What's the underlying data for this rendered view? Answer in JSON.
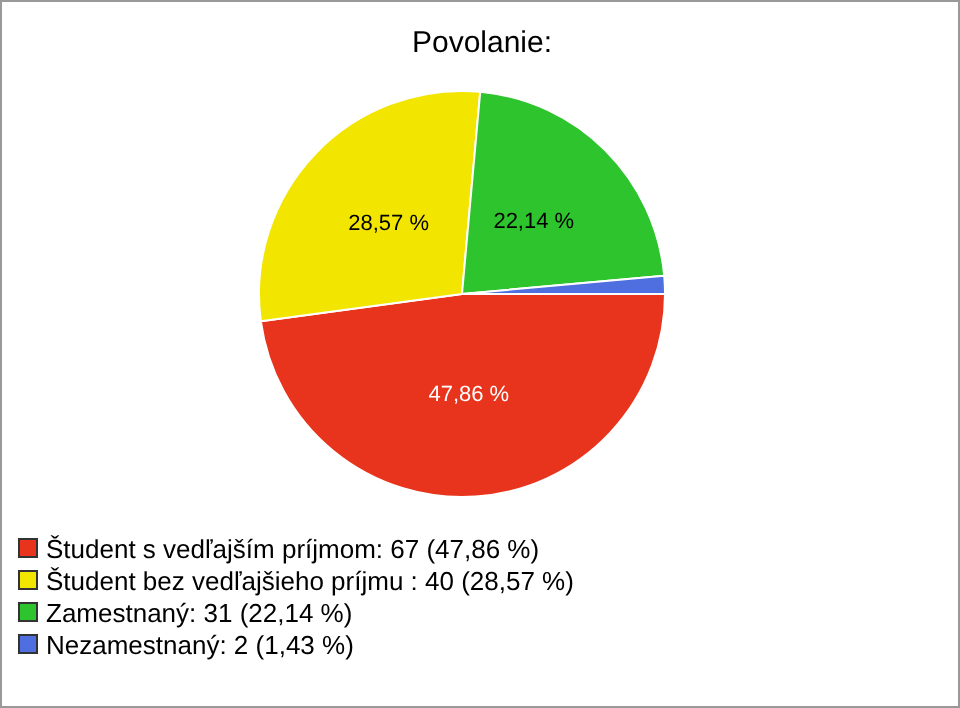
{
  "chart_data": {
    "type": "pie",
    "title": "Povolanie:",
    "categories": [
      "Študent s vedľajším príjmom: 67 (47,86 %)",
      "Študent bez vedľajšieho príjmu : 40 (28,57 %)",
      "Zamestnaný: 31 (22,14 %)",
      "Nezamestnaný: 2 (1,43 %)"
    ],
    "values": [
      47.86,
      28.57,
      22.14,
      1.43
    ],
    "colors": [
      "#e8341c",
      "#f2e600",
      "#2ec42e",
      "#4f6fe0"
    ],
    "value_labels": [
      "47,86 %",
      "28,57 %",
      "22,14 %",
      null
    ],
    "legend": "bottom"
  }
}
